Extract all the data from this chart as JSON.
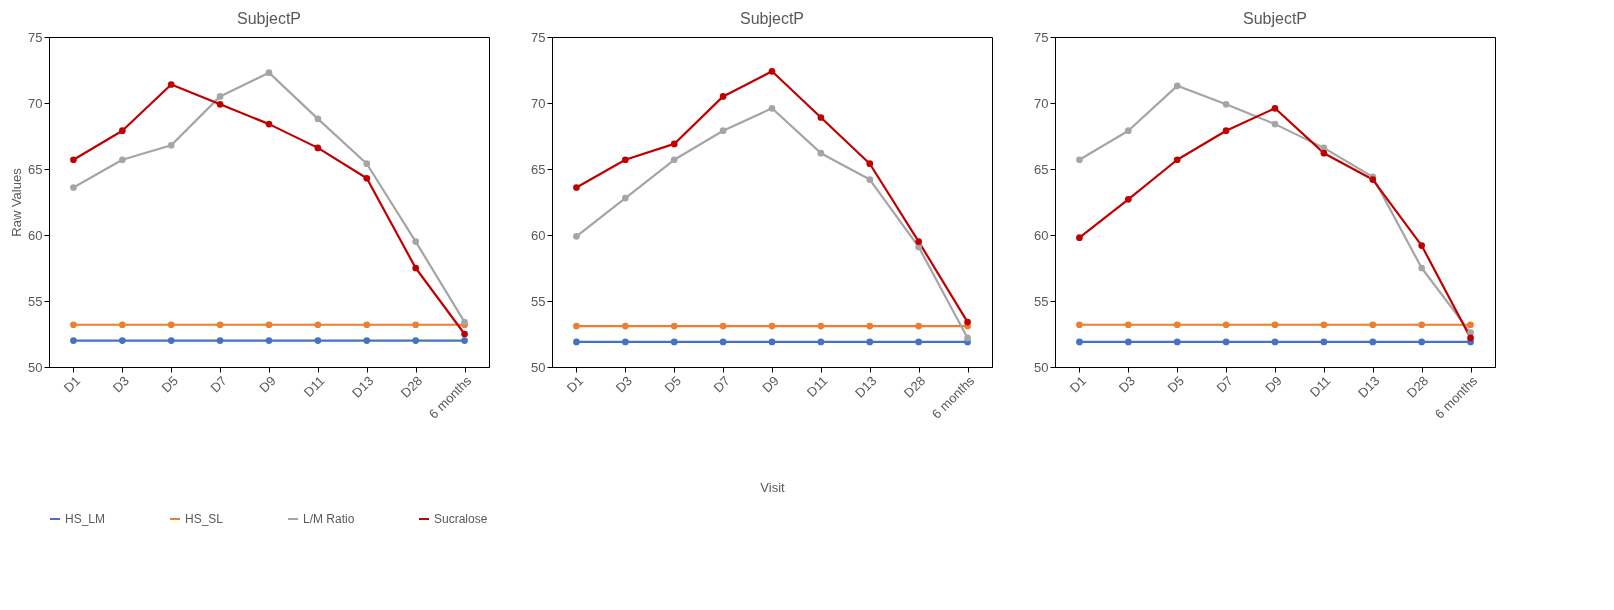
{
  "chart_data": [
    {
      "type": "line",
      "title": "SubjectP",
      "ylabel": "Raw Values",
      "categories": [
        "D1",
        "D3",
        "D5",
        "D7",
        "D9",
        "D11",
        "D13",
        "D28",
        "6 months"
      ],
      "ylim": [
        50,
        75
      ],
      "yticks": [
        50,
        55,
        60,
        65,
        70,
        75
      ],
      "marker": "circle",
      "legend": "bottom",
      "grid": false,
      "series": [
        {
          "name": "HS_LM",
          "color": "#4472c4",
          "values": [
            52.0,
            52.0,
            52.0,
            52.0,
            52.0,
            52.0,
            52.0,
            52.0,
            52.0
          ]
        },
        {
          "name": "HS_SL",
          "color": "#ed7d31",
          "values": [
            53.2,
            53.2,
            53.2,
            53.2,
            53.2,
            53.2,
            53.2,
            53.2,
            53.2
          ]
        },
        {
          "name": "L/M Ratio",
          "color": "#a5a5a5",
          "values": [
            63.6,
            65.7,
            66.8,
            70.5,
            72.3,
            68.8,
            65.4,
            59.5,
            53.4
          ]
        },
        {
          "name": "Sucralose",
          "color": "#c00000",
          "values": [
            65.7,
            67.9,
            71.4,
            69.9,
            68.4,
            66.6,
            64.3,
            57.5,
            52.5
          ]
        }
      ]
    },
    {
      "type": "line",
      "title": "SubjectP",
      "xlabel": "Visit",
      "categories": [
        "D1",
        "D3",
        "D5",
        "D7",
        "D9",
        "D11",
        "D13",
        "D28",
        "6 months"
      ],
      "ylim": [
        50,
        75
      ],
      "yticks": [
        50,
        55,
        60,
        65,
        70,
        75
      ],
      "marker": "circle",
      "legend": "bottom",
      "grid": false,
      "series": [
        {
          "name": "HS_LM",
          "color": "#4472c4",
          "values": [
            51.9,
            51.9,
            51.9,
            51.9,
            51.9,
            51.9,
            51.9,
            51.9,
            51.9
          ]
        },
        {
          "name": "HS_SL",
          "color": "#ed7d31",
          "values": [
            53.1,
            53.1,
            53.1,
            53.1,
            53.1,
            53.1,
            53.1,
            53.1,
            53.1
          ]
        },
        {
          "name": "L/M Ratio",
          "color": "#a5a5a5",
          "values": [
            59.9,
            62.8,
            65.7,
            67.9,
            69.6,
            66.2,
            64.2,
            59.1,
            52.2
          ]
        },
        {
          "name": "Sucralose",
          "color": "#c00000",
          "values": [
            63.6,
            65.7,
            66.9,
            70.5,
            72.4,
            68.9,
            65.4,
            59.5,
            53.4
          ]
        }
      ]
    },
    {
      "type": "line",
      "title": "SubjectP",
      "categories": [
        "D1",
        "D3",
        "D5",
        "D7",
        "D9",
        "D11",
        "D13",
        "D28",
        "6 months"
      ],
      "ylim": [
        50,
        75
      ],
      "yticks": [
        50,
        55,
        60,
        65,
        70,
        75
      ],
      "marker": "circle",
      "legend": "bottom",
      "grid": false,
      "series": [
        {
          "name": "HS_LM",
          "color": "#4472c4",
          "values": [
            51.9,
            51.9,
            51.9,
            51.9,
            51.9,
            51.9,
            51.9,
            51.9,
            51.9
          ]
        },
        {
          "name": "HS_SL",
          "color": "#ed7d31",
          "values": [
            53.2,
            53.2,
            53.2,
            53.2,
            53.2,
            53.2,
            53.2,
            53.2,
            53.2
          ]
        },
        {
          "name": "L/M Ratio",
          "color": "#a5a5a5",
          "values": [
            65.7,
            67.9,
            71.3,
            69.9,
            68.4,
            66.6,
            64.4,
            57.5,
            52.6
          ]
        },
        {
          "name": "Sucralose",
          "color": "#c00000",
          "values": [
            59.8,
            62.7,
            65.7,
            67.9,
            69.6,
            66.2,
            64.2,
            59.2,
            52.2
          ]
        }
      ]
    }
  ]
}
